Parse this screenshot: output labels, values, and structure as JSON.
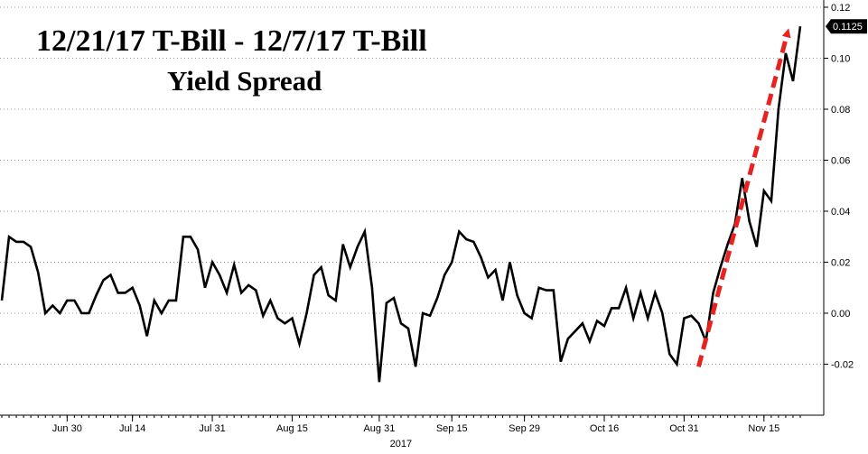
{
  "chart_data": {
    "type": "line",
    "title_lines": [
      "12/21/17 T-Bill - 12/7/17 T-Bill",
      "Yield Spread"
    ],
    "xlabel": "",
    "ylabel": "",
    "year_label": "2017",
    "x_ticks": [
      "Jun 30",
      "Jul 14",
      "Jul 31",
      "Aug 15",
      "Aug 31",
      "Sep 15",
      "Sep 29",
      "Oct 16",
      "Oct 31",
      "Nov 15"
    ],
    "x_tick_dates": [
      "2017-06-30",
      "2017-07-14",
      "2017-07-31",
      "2017-08-15",
      "2017-08-31",
      "2017-09-15",
      "2017-09-29",
      "2017-10-16",
      "2017-10-31",
      "2017-11-15"
    ],
    "ylim": [
      -0.04,
      0.12
    ],
    "y_ticks": [
      -0.02,
      0.0,
      0.02,
      0.04,
      0.06,
      0.08,
      0.1,
      0.12
    ],
    "y_tick_labels": [
      "-0.02",
      "0.00",
      "0.02",
      "0.04",
      "0.06",
      "0.08",
      "0.10",
      "0.12"
    ],
    "last_value_label": "0.1125",
    "grid": "horizontal dotted",
    "line_color": "#000000",
    "arrow_color": "#e8231f",
    "series": [
      {
        "points": [
          [
            "2017-06-19",
            0.005
          ],
          [
            "2017-06-20",
            0.03
          ],
          [
            "2017-06-21",
            0.028
          ],
          [
            "2017-06-22",
            0.028
          ],
          [
            "2017-06-23",
            0.026
          ],
          [
            "2017-06-26",
            0.016
          ],
          [
            "2017-06-27",
            0.0
          ],
          [
            "2017-06-28",
            0.003
          ],
          [
            "2017-06-29",
            0.0
          ],
          [
            "2017-06-30",
            0.005
          ],
          [
            "2017-07-03",
            0.005
          ],
          [
            "2017-07-05",
            0.0
          ],
          [
            "2017-07-06",
            0.0
          ],
          [
            "2017-07-07",
            0.007
          ],
          [
            "2017-07-10",
            0.013
          ],
          [
            "2017-07-11",
            0.015
          ],
          [
            "2017-07-12",
            0.008
          ],
          [
            "2017-07-13",
            0.008
          ],
          [
            "2017-07-14",
            0.01
          ],
          [
            "2017-07-17",
            0.003
          ],
          [
            "2017-07-18",
            -0.009
          ],
          [
            "2017-07-19",
            0.005
          ],
          [
            "2017-07-20",
            0.0
          ],
          [
            "2017-07-21",
            0.005
          ],
          [
            "2017-07-24",
            0.005
          ],
          [
            "2017-07-25",
            0.03
          ],
          [
            "2017-07-26",
            0.03
          ],
          [
            "2017-07-27",
            0.025
          ],
          [
            "2017-07-28",
            0.01
          ],
          [
            "2017-07-31",
            0.02
          ],
          [
            "2017-08-01",
            0.015
          ],
          [
            "2017-08-02",
            0.008
          ],
          [
            "2017-08-03",
            0.019
          ],
          [
            "2017-08-04",
            0.008
          ],
          [
            "2017-08-07",
            0.011
          ],
          [
            "2017-08-08",
            0.009
          ],
          [
            "2017-08-09",
            -0.001
          ],
          [
            "2017-08-10",
            0.005
          ],
          [
            "2017-08-11",
            -0.002
          ],
          [
            "2017-08-14",
            -0.004
          ],
          [
            "2017-08-15",
            -0.002
          ],
          [
            "2017-08-16",
            -0.012
          ],
          [
            "2017-08-17",
            0.0
          ],
          [
            "2017-08-18",
            0.015
          ],
          [
            "2017-08-21",
            0.018
          ],
          [
            "2017-08-22",
            0.007
          ],
          [
            "2017-08-23",
            0.005
          ],
          [
            "2017-08-24",
            0.027
          ],
          [
            "2017-08-25",
            0.018
          ],
          [
            "2017-08-28",
            0.026
          ],
          [
            "2017-08-29",
            0.032
          ],
          [
            "2017-08-30",
            0.01
          ],
          [
            "2017-08-31",
            -0.027
          ],
          [
            "2017-09-01",
            0.004
          ],
          [
            "2017-09-05",
            0.006
          ],
          [
            "2017-09-06",
            -0.004
          ],
          [
            "2017-09-07",
            -0.006
          ],
          [
            "2017-09-08",
            -0.021
          ],
          [
            "2017-09-11",
            0.0
          ],
          [
            "2017-09-12",
            -0.001
          ],
          [
            "2017-09-13",
            0.006
          ],
          [
            "2017-09-14",
            0.015
          ],
          [
            "2017-09-15",
            0.02
          ],
          [
            "2017-09-18",
            0.032
          ],
          [
            "2017-09-19",
            0.029
          ],
          [
            "2017-09-20",
            0.028
          ],
          [
            "2017-09-21",
            0.022
          ],
          [
            "2017-09-22",
            0.014
          ],
          [
            "2017-09-25",
            0.017
          ],
          [
            "2017-09-26",
            0.005
          ],
          [
            "2017-09-27",
            0.02
          ],
          [
            "2017-09-28",
            0.007
          ],
          [
            "2017-09-29",
            0.0
          ],
          [
            "2017-10-02",
            -0.002
          ],
          [
            "2017-10-03",
            0.01
          ],
          [
            "2017-10-04",
            0.009
          ],
          [
            "2017-10-05",
            0.009
          ],
          [
            "2017-10-06",
            -0.019
          ],
          [
            "2017-10-09",
            -0.01
          ],
          [
            "2017-10-10",
            -0.007
          ],
          [
            "2017-10-11",
            -0.004
          ],
          [
            "2017-10-12",
            -0.011
          ],
          [
            "2017-10-13",
            -0.003
          ],
          [
            "2017-10-16",
            -0.005
          ],
          [
            "2017-10-17",
            0.002
          ],
          [
            "2017-10-18",
            0.002
          ],
          [
            "2017-10-19",
            0.01
          ],
          [
            "2017-10-20",
            -0.002
          ],
          [
            "2017-10-23",
            0.008
          ],
          [
            "2017-10-24",
            -0.002
          ],
          [
            "2017-10-25",
            0.008
          ],
          [
            "2017-10-26",
            0.0
          ],
          [
            "2017-10-27",
            -0.016
          ],
          [
            "2017-10-30",
            -0.02
          ],
          [
            "2017-10-31",
            -0.002
          ],
          [
            "2017-11-01",
            -0.001
          ],
          [
            "2017-11-02",
            -0.004
          ],
          [
            "2017-11-03",
            -0.011
          ],
          [
            "2017-11-06",
            0.008
          ],
          [
            "2017-11-07",
            0.018
          ],
          [
            "2017-11-08",
            0.027
          ],
          [
            "2017-11-09",
            0.035
          ],
          [
            "2017-11-10",
            0.053
          ],
          [
            "2017-11-13",
            0.036
          ],
          [
            "2017-11-14",
            0.026
          ],
          [
            "2017-11-15",
            0.048
          ],
          [
            "2017-11-16",
            0.044
          ],
          [
            "2017-11-17",
            0.08
          ],
          [
            "2017-11-20",
            0.102
          ],
          [
            "2017-11-21",
            0.091
          ],
          [
            "2017-11-22",
            0.1125
          ]
        ]
      }
    ],
    "annotations": [
      {
        "type": "dashed-arrow",
        "from": [
          "2017-10-31",
          -0.021
        ],
        "to": [
          "2017-11-20",
          0.11
        ]
      }
    ]
  }
}
